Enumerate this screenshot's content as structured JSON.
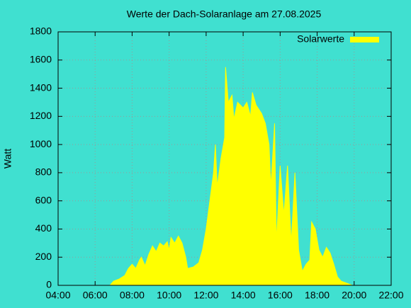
{
  "chart_data": {
    "type": "area",
    "title": "Werte der Dach-Solaranlage am 27.08.2025",
    "y_label": "Watt",
    "x": [
      6.8,
      7.0,
      7.3,
      7.6,
      7.8,
      8.0,
      8.2,
      8.4,
      8.5,
      8.7,
      8.9,
      9.1,
      9.3,
      9.5,
      9.7,
      9.9,
      10.0,
      10.1,
      10.3,
      10.5,
      10.7,
      10.9,
      11.0,
      11.3,
      11.6,
      11.8,
      12.0,
      12.2,
      12.4,
      12.5,
      12.6,
      12.8,
      13.0,
      13.05,
      13.2,
      13.4,
      13.5,
      13.7,
      14.0,
      14.2,
      14.4,
      14.5,
      14.7,
      15.0,
      15.2,
      15.4,
      15.5,
      15.7,
      15.8,
      16.0,
      16.2,
      16.4,
      16.6,
      16.8,
      17.0,
      17.2,
      17.4,
      17.6,
      17.7,
      17.9,
      18.1,
      18.3,
      18.5,
      18.7,
      18.9,
      19.1,
      19.3,
      19.5,
      19.7,
      19.9
    ],
    "series": [
      {
        "name": "Solarwerte",
        "color": "#ffff00",
        "values": [
          0,
          30,
          45,
          70,
          120,
          150,
          120,
          180,
          200,
          140,
          220,
          280,
          240,
          300,
          280,
          310,
          250,
          340,
          300,
          350,
          300,
          200,
          120,
          130,
          160,
          250,
          400,
          600,
          800,
          1000,
          700,
          900,
          1050,
          1550,
          1300,
          1350,
          1180,
          1300,
          1260,
          1300,
          1200,
          1370,
          1280,
          1220,
          1150,
          1000,
          700,
          1150,
          300,
          850,
          500,
          850,
          300,
          800,
          250,
          100,
          150,
          180,
          450,
          400,
          250,
          200,
          270,
          230,
          150,
          60,
          30,
          20,
          10,
          0
        ]
      }
    ],
    "xlim": [
      4,
      22
    ],
    "ylim": [
      0,
      1800
    ],
    "xticks": [
      {
        "value": 4,
        "label": "04:00"
      },
      {
        "value": 6,
        "label": "06:00"
      },
      {
        "value": 8,
        "label": "08:00"
      },
      {
        "value": 10,
        "label": "10:00"
      },
      {
        "value": 12,
        "label": "12:00"
      },
      {
        "value": 14,
        "label": "14:00"
      },
      {
        "value": 16,
        "label": "16:00"
      },
      {
        "value": 18,
        "label": "18:00"
      },
      {
        "value": 20,
        "label": "20:00"
      },
      {
        "value": 22,
        "label": "22:00"
      }
    ],
    "yticks": [
      0,
      200,
      400,
      600,
      800,
      1000,
      1200,
      1400,
      1600,
      1800
    ],
    "grid": true,
    "legend": "top-right"
  }
}
